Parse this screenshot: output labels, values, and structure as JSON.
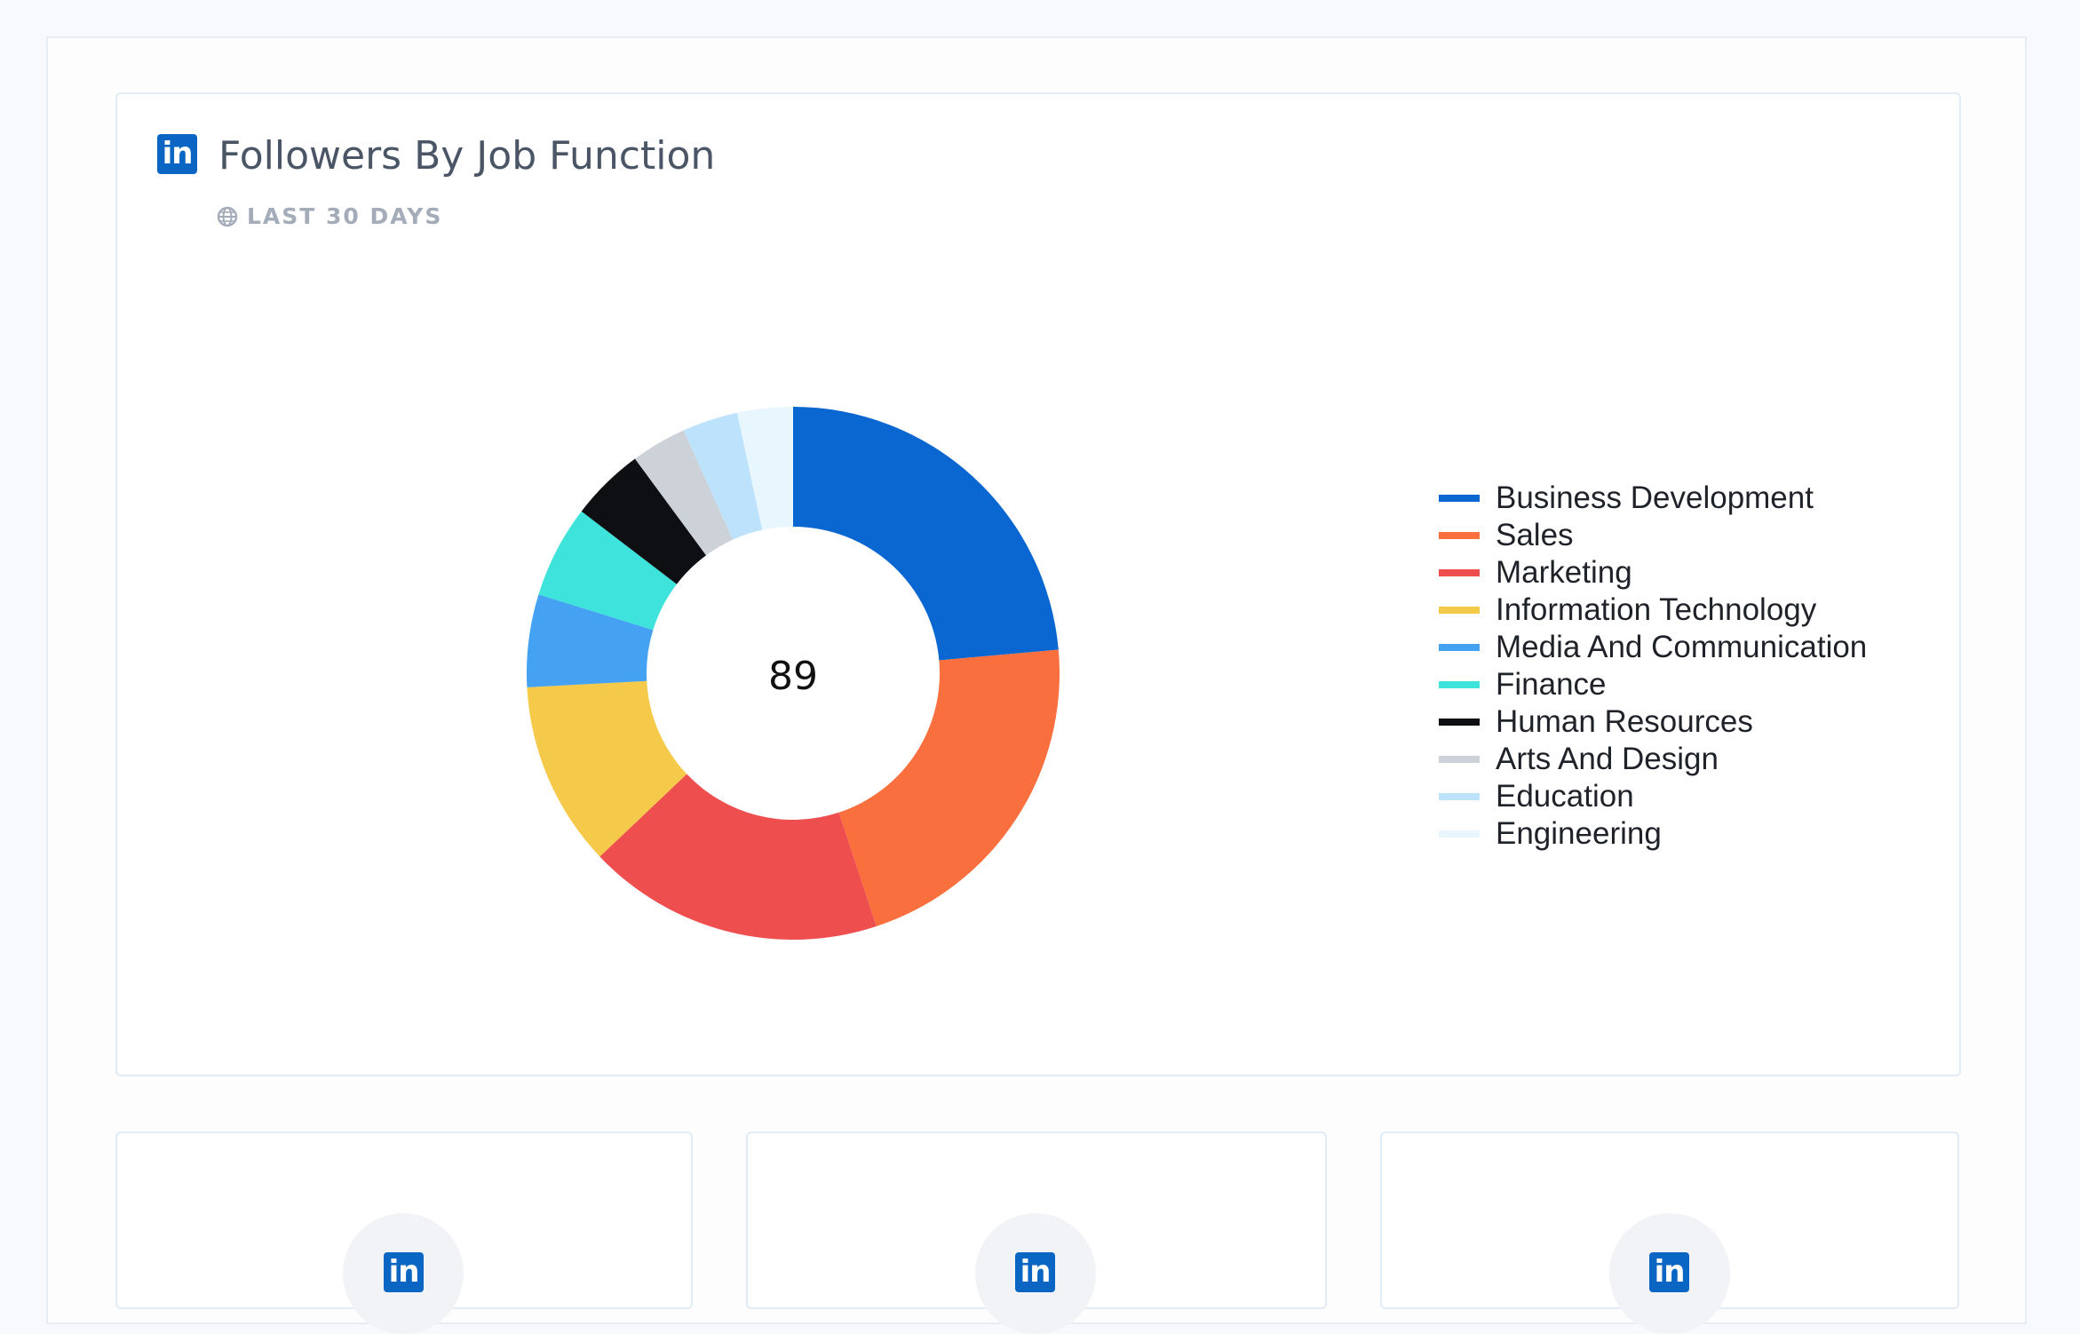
{
  "card": {
    "title": "Followers By Job Function",
    "period": "LAST 30 DAYS",
    "logo_text": "in",
    "icons": {
      "brand": "linkedin-icon",
      "period": "globe-icon"
    }
  },
  "chart_data": {
    "type": "pie",
    "subtype": "donut",
    "center_label": "89",
    "legend_position": "right",
    "categories": [
      "Business Development",
      "Sales",
      "Marketing",
      "Information Technology",
      "Media And Communication",
      "Finance",
      "Human Resources",
      "Arts And Design",
      "Education",
      "Engineering"
    ],
    "values": [
      21,
      19,
      16,
      10,
      5,
      5,
      4,
      3,
      3,
      3
    ],
    "colors": [
      "#0a66d1",
      "#f96f3d",
      "#ee4e4e",
      "#f5c94a",
      "#45a2f2",
      "#3ee3dc",
      "#0d0f12",
      "#cdd2d8",
      "#bde3fc",
      "#e8f6fe"
    ]
  },
  "stat_cards": [
    {
      "logo_text": "in"
    },
    {
      "logo_text": "in"
    },
    {
      "logo_text": "in"
    }
  ]
}
